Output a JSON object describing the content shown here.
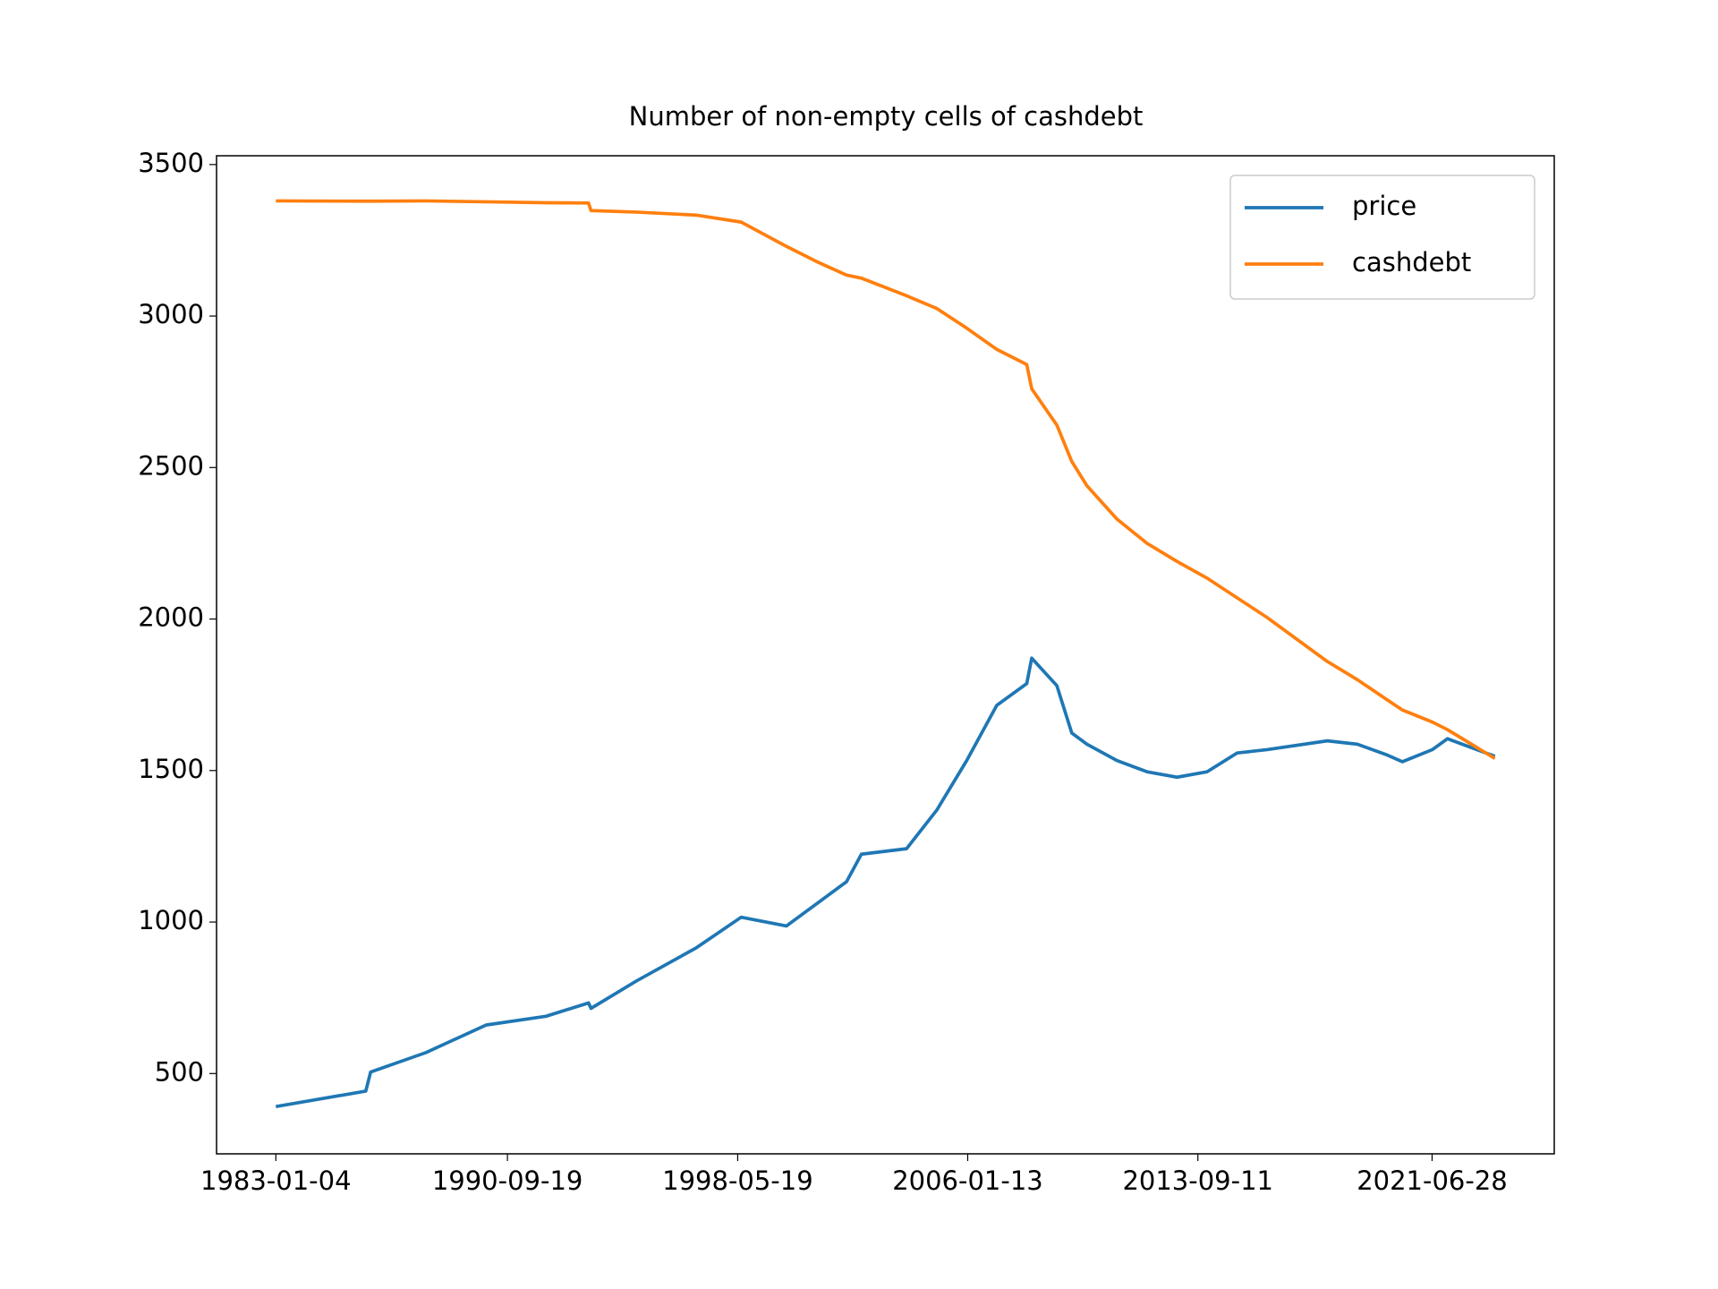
{
  "chart_data": {
    "type": "line",
    "title": "Number of non-empty cells of cashdebt",
    "x": [
      "1983-01-04",
      "1986-01-01",
      "1986-03-01",
      "1988-01-01",
      "1990-01-01",
      "1992-01-01",
      "1993-06-01",
      "1993-07-01",
      "1995-01-01",
      "1997-01-01",
      "1998-07-01",
      "2000-01-01",
      "2001-01-01",
      "2002-01-01",
      "2002-07-01",
      "2004-01-01",
      "2005-01-01",
      "2006-01-01",
      "2007-01-01",
      "2008-01-01",
      "2008-03-01",
      "2009-01-01",
      "2009-07-01",
      "2010-01-01",
      "2011-01-01",
      "2012-01-01",
      "2013-01-01",
      "2014-01-01",
      "2015-01-01",
      "2016-01-01",
      "2018-01-01",
      "2019-01-01",
      "2020-01-01",
      "2020-07-01",
      "2021-07-01",
      "2022-01-01",
      "2023-07-31"
    ],
    "series": [
      {
        "name": "price",
        "color": "#1f77b4",
        "values": [
          391,
          442,
          505,
          569,
          660,
          689,
          733,
          715,
          805,
          915,
          1016,
          987,
          1060,
          1133,
          1224,
          1242,
          1369,
          1533,
          1715,
          1787,
          1871,
          1780,
          1624,
          1587,
          1533,
          1496,
          1478,
          1496,
          1558,
          1569,
          1598,
          1587,
          1551,
          1529,
          1569,
          1605,
          1547
        ]
      },
      {
        "name": "cashdebt",
        "color": "#ff7f0e",
        "values": [
          3380,
          3379,
          3379,
          3380,
          3377,
          3374,
          3373,
          3348,
          3343,
          3333,
          3310,
          3230,
          3180,
          3135,
          3125,
          3067,
          3025,
          2960,
          2890,
          2840,
          2760,
          2640,
          2520,
          2440,
          2330,
          2250,
          2190,
          2135,
          2070,
          2005,
          1860,
          1800,
          1733,
          1700,
          1660,
          1635,
          1540
        ]
      }
    ],
    "xlim": [
      "1981-01-13",
      "2025-07-22"
    ],
    "xticks": [
      "1983-01-04",
      "1990-09-19",
      "1998-05-19",
      "2006-01-13",
      "2013-09-11",
      "2021-06-28"
    ],
    "ylim": [
      235,
      3529
    ],
    "yticks": [
      500,
      1000,
      1500,
      2000,
      2500,
      3000,
      3500
    ],
    "grid": false,
    "legend": "upper right"
  }
}
